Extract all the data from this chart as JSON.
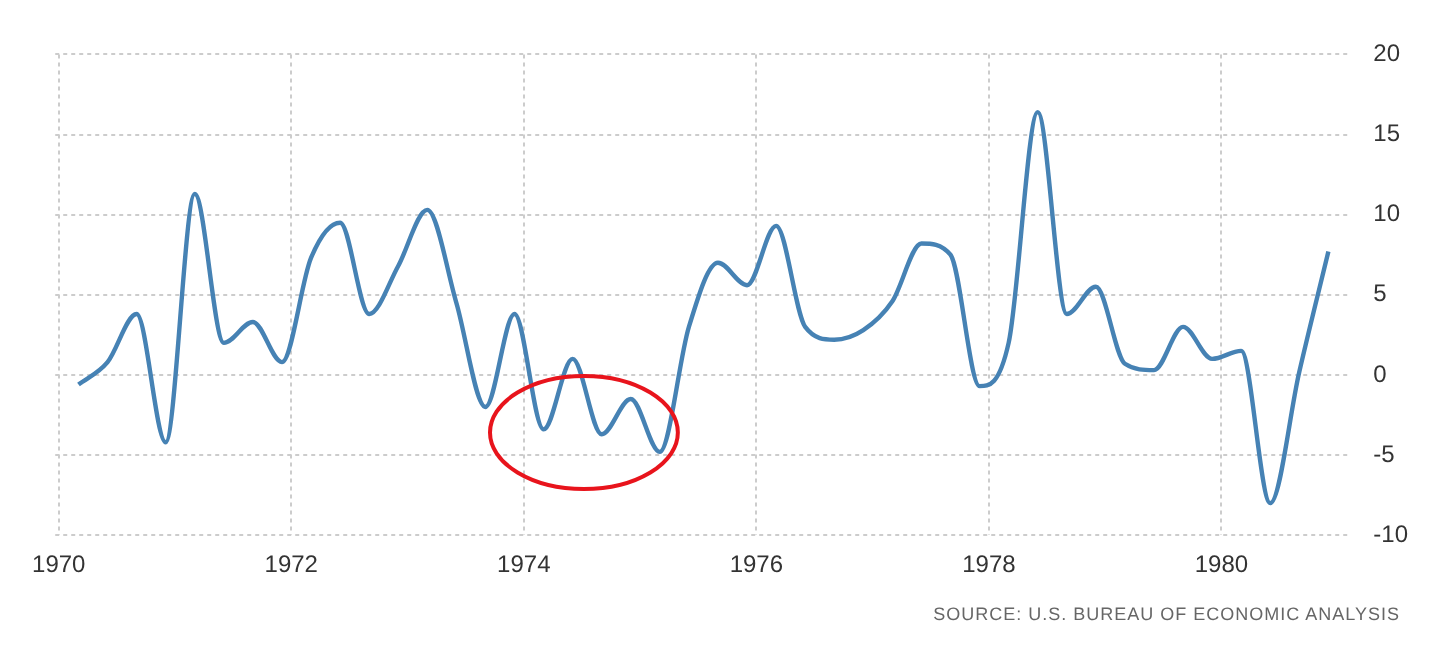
{
  "chart_data": {
    "type": "line",
    "x": [
      1970.17,
      1970.42,
      1970.67,
      1970.92,
      1971.17,
      1971.42,
      1971.67,
      1971.92,
      1972.17,
      1972.42,
      1972.67,
      1972.92,
      1973.17,
      1973.42,
      1973.67,
      1973.92,
      1974.17,
      1974.42,
      1974.67,
      1974.92,
      1975.17,
      1975.42,
      1975.67,
      1975.92,
      1976.17,
      1976.42,
      1976.67,
      1976.92,
      1977.17,
      1977.42,
      1977.67,
      1977.92,
      1978.17,
      1978.42,
      1978.67,
      1978.92,
      1979.17,
      1979.42,
      1979.67,
      1979.92,
      1980.17,
      1980.42,
      1980.67,
      1980.92
    ],
    "series": [
      {
        "color": "#4682b4",
        "values": [
          -0.6,
          0.8,
          3.8,
          -4.2,
          11.3,
          2.0,
          3.3,
          0.8,
          7.3,
          9.5,
          3.8,
          6.8,
          10.3,
          4.5,
          -2.0,
          3.8,
          -3.4,
          1.0,
          -3.7,
          -1.5,
          -4.8,
          3.0,
          7.0,
          5.6,
          9.3,
          3.0,
          2.2,
          2.8,
          4.6,
          8.2,
          7.5,
          -0.7,
          2.0,
          16.4,
          3.8,
          5.5,
          0.7,
          0.3,
          3.0,
          1.0,
          1.5,
          -8.0,
          0.2,
          7.7
        ]
      }
    ],
    "xlim": [
      1969.97,
      1981.1
    ],
    "xticks": [
      1970,
      1972,
      1974,
      1976,
      1978,
      1980
    ],
    "ylim": [
      -10,
      20
    ],
    "yticks": [
      -10,
      -5,
      0,
      5,
      10,
      15,
      20
    ],
    "grid": true,
    "legend": false,
    "marker": "none",
    "line_style": "solid",
    "annotations": [
      "SOURCE: U.S. BUREAU OF ECONOMIC ANALYSIS"
    ]
  }
}
